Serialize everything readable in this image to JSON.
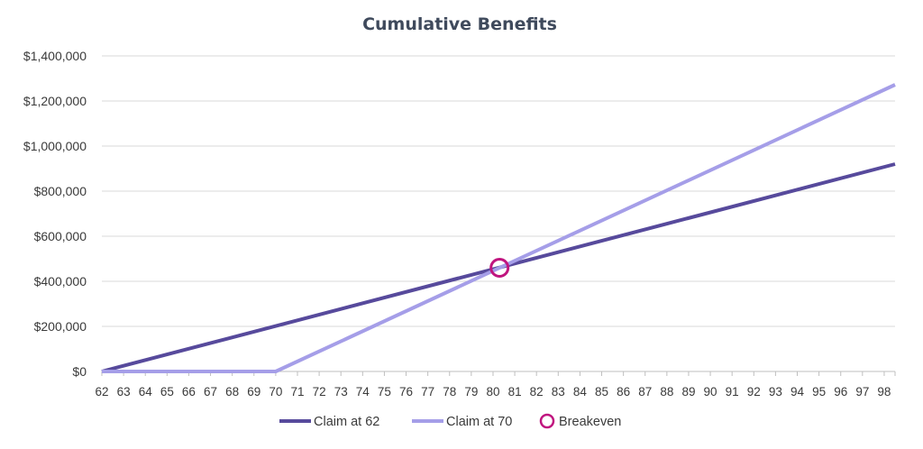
{
  "chart_data": {
    "type": "line",
    "title": "Cumulative Benefits",
    "xlabel": "",
    "ylabel": "",
    "x": [
      62,
      63,
      64,
      65,
      66,
      67,
      68,
      69,
      70,
      71,
      72,
      73,
      74,
      75,
      76,
      77,
      78,
      79,
      80,
      81,
      82,
      83,
      84,
      85,
      86,
      87,
      88,
      89,
      90,
      91,
      92,
      93,
      94,
      95,
      96,
      97,
      98
    ],
    "xlim": [
      62,
      98.5
    ],
    "ylim": [
      0,
      1400000
    ],
    "y_ticks": [
      0,
      200000,
      400000,
      600000,
      800000,
      1000000,
      1200000,
      1400000
    ],
    "y_tick_labels": [
      "$0",
      "$200,000",
      "$400,000",
      "$600,000",
      "$800,000",
      "$1,000,000",
      "$1,200,000",
      "$1,400,000"
    ],
    "grid": "horizontal",
    "legend_position": "bottom",
    "series": [
      {
        "name": "Claim at 62",
        "color": "#574a9c",
        "points": [
          [
            62,
            0
          ],
          [
            98.5,
            920000
          ]
        ]
      },
      {
        "name": "Claim at 70",
        "color": "#a59ee8",
        "points": [
          [
            62,
            0
          ],
          [
            70,
            0
          ],
          [
            98.5,
            1272000
          ]
        ]
      }
    ],
    "markers": [
      {
        "name": "Breakeven",
        "color": "#c0157f",
        "x": 80.3,
        "y": 460000
      }
    ]
  }
}
